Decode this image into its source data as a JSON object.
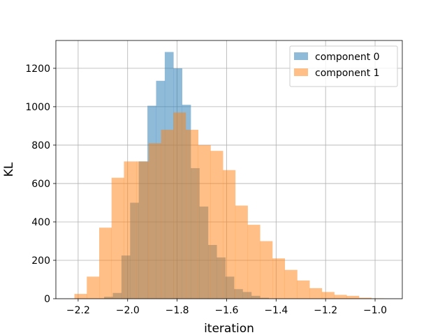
{
  "chart_data": {
    "type": "histogram",
    "title": "",
    "xlabel": "iteration",
    "ylabel": "KL",
    "xlim": [
      -2.29,
      -0.89
    ],
    "ylim": [
      0,
      1345
    ],
    "xticks": [
      -2.2,
      -2.0,
      -1.8,
      -1.6,
      -1.4,
      -1.2,
      -1.0
    ],
    "xtick_labels": [
      "−2.2",
      "−2.0",
      "−1.8",
      "−1.6",
      "−1.4",
      "−1.2",
      "−1.0"
    ],
    "yticks": [
      0,
      200,
      400,
      600,
      800,
      1000,
      1200
    ],
    "ytick_labels": [
      "0",
      "200",
      "400",
      "600",
      "800",
      "1000",
      "1200"
    ],
    "grid": true,
    "legend_position": "top-right",
    "series": [
      {
        "name": "component 0",
        "color": "#1f77b4",
        "alpha": 0.5,
        "bins": [
          {
            "x0": -2.095,
            "x1": -2.06,
            "count": 10
          },
          {
            "x0": -2.06,
            "x1": -2.025,
            "count": 30
          },
          {
            "x0": -2.025,
            "x1": -1.99,
            "count": 225
          },
          {
            "x0": -1.99,
            "x1": -1.955,
            "count": 500
          },
          {
            "x0": -1.955,
            "x1": -1.92,
            "count": 715
          },
          {
            "x0": -1.92,
            "x1": -1.885,
            "count": 1005
          },
          {
            "x0": -1.885,
            "x1": -1.85,
            "count": 1135
          },
          {
            "x0": -1.85,
            "x1": -1.815,
            "count": 1285
          },
          {
            "x0": -1.815,
            "x1": -1.78,
            "count": 1200
          },
          {
            "x0": -1.78,
            "x1": -1.745,
            "count": 1010
          },
          {
            "x0": -1.745,
            "x1": -1.71,
            "count": 680
          },
          {
            "x0": -1.71,
            "x1": -1.675,
            "count": 480
          },
          {
            "x0": -1.675,
            "x1": -1.64,
            "count": 280
          },
          {
            "x0": -1.64,
            "x1": -1.605,
            "count": 215
          },
          {
            "x0": -1.605,
            "x1": -1.57,
            "count": 115
          },
          {
            "x0": -1.57,
            "x1": -1.535,
            "count": 50
          },
          {
            "x0": -1.535,
            "x1": -1.5,
            "count": 35
          },
          {
            "x0": -1.5,
            "x1": -1.465,
            "count": 15
          },
          {
            "x0": -1.465,
            "x1": -1.43,
            "count": 5
          }
        ]
      },
      {
        "name": "component 1",
        "color": "#ff7f0e",
        "alpha": 0.5,
        "bins": [
          {
            "x0": -2.215,
            "x1": -2.165,
            "count": 25
          },
          {
            "x0": -2.165,
            "x1": -2.115,
            "count": 115
          },
          {
            "x0": -2.115,
            "x1": -2.065,
            "count": 370
          },
          {
            "x0": -2.065,
            "x1": -2.015,
            "count": 630
          },
          {
            "x0": -2.015,
            "x1": -1.965,
            "count": 715
          },
          {
            "x0": -1.965,
            "x1": -1.915,
            "count": 715
          },
          {
            "x0": -1.915,
            "x1": -1.865,
            "count": 810
          },
          {
            "x0": -1.865,
            "x1": -1.815,
            "count": 880
          },
          {
            "x0": -1.815,
            "x1": -1.765,
            "count": 970
          },
          {
            "x0": -1.765,
            "x1": -1.715,
            "count": 880
          },
          {
            "x0": -1.715,
            "x1": -1.665,
            "count": 800
          },
          {
            "x0": -1.665,
            "x1": -1.615,
            "count": 770
          },
          {
            "x0": -1.615,
            "x1": -1.565,
            "count": 670
          },
          {
            "x0": -1.565,
            "x1": -1.515,
            "count": 485
          },
          {
            "x0": -1.515,
            "x1": -1.465,
            "count": 385
          },
          {
            "x0": -1.465,
            "x1": -1.415,
            "count": 300
          },
          {
            "x0": -1.415,
            "x1": -1.365,
            "count": 210
          },
          {
            "x0": -1.365,
            "x1": -1.315,
            "count": 150
          },
          {
            "x0": -1.315,
            "x1": -1.265,
            "count": 95
          },
          {
            "x0": -1.265,
            "x1": -1.215,
            "count": 55
          },
          {
            "x0": -1.215,
            "x1": -1.165,
            "count": 35
          },
          {
            "x0": -1.165,
            "x1": -1.115,
            "count": 20
          },
          {
            "x0": -1.115,
            "x1": -1.065,
            "count": 15
          },
          {
            "x0": -1.065,
            "x1": -1.015,
            "count": 5
          },
          {
            "x0": -1.015,
            "x1": -0.965,
            "count": 2
          }
        ]
      }
    ]
  }
}
